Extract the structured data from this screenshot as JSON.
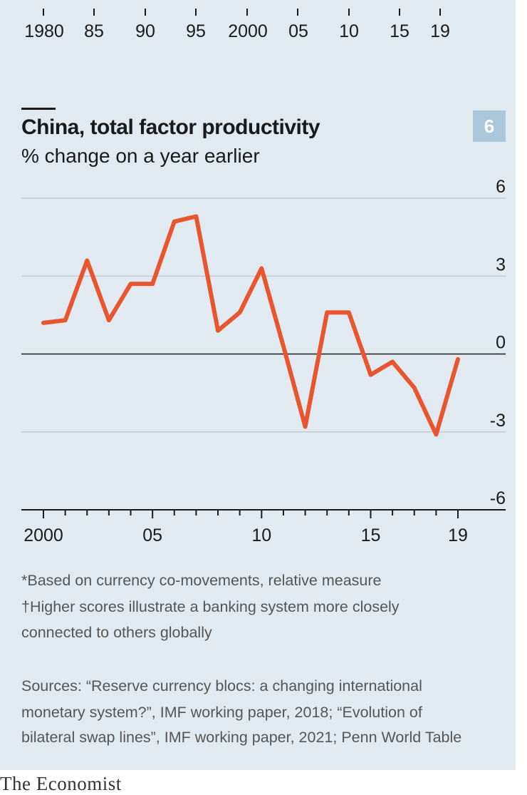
{
  "top_axis": {
    "tick_labels": [
      "1980",
      "85",
      "90",
      "95",
      "2000",
      "05",
      "10",
      "15",
      "19"
    ]
  },
  "badge": "6",
  "chart_data": {
    "type": "line",
    "title": "China, total factor productivity",
    "subtitle": "% change on a year earlier",
    "x": [
      2000,
      2001,
      2002,
      2003,
      2004,
      2005,
      2006,
      2007,
      2008,
      2009,
      2010,
      2011,
      2012,
      2013,
      2014,
      2015,
      2016,
      2017,
      2018,
      2019
    ],
    "series": [
      {
        "values": [
          1.2,
          1.3,
          3.6,
          1.3,
          2.7,
          2.7,
          5.1,
          5.3,
          0.9,
          1.6,
          3.3,
          0.3,
          -2.8,
          1.6,
          1.6,
          -0.8,
          -0.3,
          -1.3,
          -3.1,
          -0.2
        ],
        "color": "#e8552f"
      }
    ],
    "x_tick_labels": [
      "2000",
      "05",
      "10",
      "15",
      "19"
    ],
    "x_tick_years": [
      2000,
      2005,
      2010,
      2015,
      2019
    ],
    "y_tick_labels": [
      "6",
      "3",
      "0",
      "-3",
      "-6"
    ],
    "y_ticks": [
      6,
      3,
      0,
      -3,
      -6
    ],
    "ylim": [
      -6,
      6
    ],
    "xlim": [
      2000,
      2019
    ],
    "grid": true,
    "xlabel": "",
    "ylabel": ""
  },
  "notes": {
    "star": "*Based on currency co-movements, relative measure",
    "dagger_line1": "†Higher scores illustrate a banking system more closely",
    "dagger_line2": "connected to others globally",
    "sources_line1": "Sources: “Reserve currency blocs: a changing international",
    "sources_line2": "monetary system?”, IMF working paper, 2018; “Evolution of",
    "sources_line3": "bilateral swap lines”, IMF working paper, 2021; Penn World Table"
  },
  "logo": "The Economist"
}
